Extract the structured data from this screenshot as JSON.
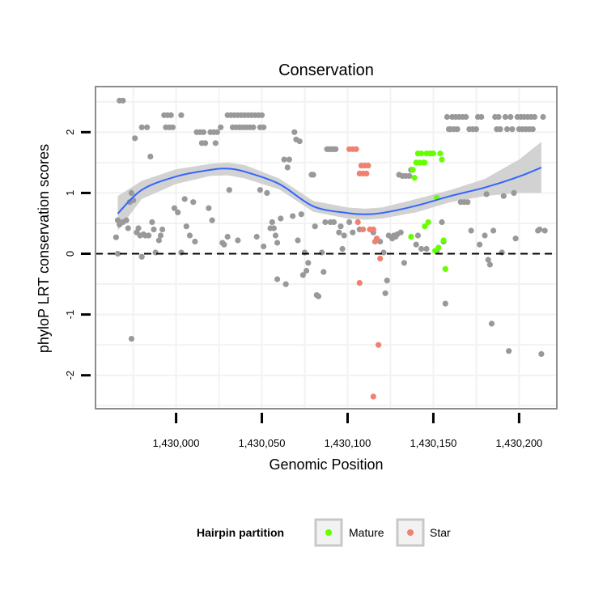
{
  "chart_data": {
    "type": "scatter",
    "title": "Conservation",
    "xlabel": "Genomic Position",
    "ylabel": "phyloP LRT conservation scores",
    "xlim": [
      1429953,
      1430222
    ],
    "ylim": [
      -2.55,
      2.75
    ],
    "x_ticks": [
      1430000,
      1430050,
      1430100,
      1430150,
      1430200
    ],
    "x_tick_labels": [
      "1,430,000",
      "1,430,050",
      "1,430,100",
      "1,430,150",
      "1,430,200"
    ],
    "y_ticks": [
      -2,
      -1,
      0,
      1,
      2
    ],
    "y_tick_labels": [
      "-2",
      "-1",
      "0",
      "1",
      "2"
    ],
    "reference_line": {
      "y": 0,
      "style": "dashed"
    },
    "legend": {
      "title": "Hairpin partition",
      "position": "bottom",
      "entries": [
        {
          "label": "Mature",
          "color": "#66ff00"
        },
        {
          "label": "Star",
          "color": "#f08070"
        }
      ]
    },
    "colors": {
      "other": "#999999",
      "Mature": "#66ff00",
      "Star": "#f08070",
      "smooth": "#3366ff",
      "band": "#d0d0d0",
      "panel_border": "#8c8c8c",
      "grid": "#f2f2f2"
    },
    "smooth": {
      "x": [
        1429966,
        1429980,
        1430000,
        1430020,
        1430030,
        1430040,
        1430060,
        1430080,
        1430100,
        1430110,
        1430120,
        1430140,
        1430160,
        1430180,
        1430200,
        1430213
      ],
      "y": [
        0.66,
        1.05,
        1.27,
        1.38,
        1.4,
        1.35,
        1.15,
        0.78,
        0.67,
        0.65,
        0.67,
        0.79,
        0.95,
        1.09,
        1.27,
        1.42
      ],
      "lower": [
        0.38,
        0.9,
        1.15,
        1.28,
        1.29,
        1.24,
        1.06,
        0.69,
        0.58,
        0.56,
        0.58,
        0.68,
        0.85,
        0.95,
        1.0,
        1.0
      ],
      "upper": [
        0.95,
        1.2,
        1.39,
        1.48,
        1.5,
        1.46,
        1.24,
        0.87,
        0.76,
        0.74,
        0.76,
        0.9,
        1.05,
        1.23,
        1.55,
        1.84
      ]
    },
    "series": [
      {
        "name": "other",
        "points": [
          [
            1429967,
            2.52
          ],
          [
            1429969,
            2.52
          ],
          [
            1429966,
            0.55
          ],
          [
            1429967,
            0.48
          ],
          [
            1429969,
            0.52
          ],
          [
            1429971,
            0.55
          ],
          [
            1429972,
            0.42
          ],
          [
            1429965,
            0.27
          ],
          [
            1429966,
            0.0
          ],
          [
            1429973,
            0.85
          ],
          [
            1429974,
            1.0
          ],
          [
            1429975,
            0.88
          ],
          [
            1429974,
            -1.4
          ],
          [
            1429976,
            1.9
          ],
          [
            1429977,
            0.35
          ],
          [
            1429978,
            0.42
          ],
          [
            1429979,
            0.3
          ],
          [
            1429980,
            2.08
          ],
          [
            1429981,
            0.32
          ],
          [
            1429982,
            0.3
          ],
          [
            1429983,
            2.08
          ],
          [
            1429984,
            0.3
          ],
          [
            1429985,
            1.6
          ],
          [
            1429986,
            0.52
          ],
          [
            1429987,
            0.4
          ],
          [
            1429980,
            -0.05
          ],
          [
            1429988,
            0.02
          ],
          [
            1429990,
            0.22
          ],
          [
            1429991,
            0.3
          ],
          [
            1429992,
            0.4
          ],
          [
            1429993,
            2.28
          ],
          [
            1429995,
            2.28
          ],
          [
            1429997,
            2.28
          ],
          [
            1429994,
            2.08
          ],
          [
            1429996,
            2.08
          ],
          [
            1429998,
            2.08
          ],
          [
            1429999,
            0.75
          ],
          [
            1430001,
            0.68
          ],
          [
            1430003,
            2.28
          ],
          [
            1430005,
            0.9
          ],
          [
            1430006,
            0.45
          ],
          [
            1430008,
            0.3
          ],
          [
            1430003,
            0.02
          ],
          [
            1430010,
            0.85
          ],
          [
            1430011,
            0.2
          ],
          [
            1430012,
            2.0
          ],
          [
            1430014,
            2.0
          ],
          [
            1430016,
            2.0
          ],
          [
            1430015,
            1.82
          ],
          [
            1430017,
            1.82
          ],
          [
            1430019,
            0.75
          ],
          [
            1430020,
            2.0
          ],
          [
            1430022,
            2.0
          ],
          [
            1430024,
            2.0
          ],
          [
            1430021,
            0.55
          ],
          [
            1430023,
            1.82
          ],
          [
            1430026,
            2.08
          ],
          [
            1430027,
            0.18
          ],
          [
            1430028,
            0.15
          ],
          [
            1430030,
            2.28
          ],
          [
            1430032,
            2.28
          ],
          [
            1430034,
            2.28
          ],
          [
            1430036,
            2.28
          ],
          [
            1430038,
            2.28
          ],
          [
            1430040,
            2.28
          ],
          [
            1430042,
            2.28
          ],
          [
            1430044,
            2.28
          ],
          [
            1430046,
            2.28
          ],
          [
            1430048,
            2.28
          ],
          [
            1430050,
            2.28
          ],
          [
            1430033,
            2.08
          ],
          [
            1430035,
            2.08
          ],
          [
            1430037,
            2.08
          ],
          [
            1430039,
            2.08
          ],
          [
            1430041,
            2.08
          ],
          [
            1430043,
            2.08
          ],
          [
            1430045,
            2.08
          ],
          [
            1430049,
            2.08
          ],
          [
            1430051,
            2.08
          ],
          [
            1430031,
            1.05
          ],
          [
            1430030,
            0.28
          ],
          [
            1430036,
            0.22
          ],
          [
            1430047,
            0.28
          ],
          [
            1430049,
            1.05
          ],
          [
            1430051,
            0.12
          ],
          [
            1430053,
            1.0
          ],
          [
            1430055,
            0.42
          ],
          [
            1430056,
            0.52
          ],
          [
            1430057,
            0.42
          ],
          [
            1430058,
            0.3
          ],
          [
            1430059,
            0.18
          ],
          [
            1430059,
            -0.42
          ],
          [
            1430061,
            0.58
          ],
          [
            1430063,
            1.55
          ],
          [
            1430065,
            1.42
          ],
          [
            1430066,
            1.55
          ],
          [
            1430064,
            -0.5
          ],
          [
            1430068,
            0.62
          ],
          [
            1430069,
            2.0
          ],
          [
            1430070,
            1.88
          ],
          [
            1430071,
            0.22
          ],
          [
            1430072,
            1.85
          ],
          [
            1430073,
            0.65
          ],
          [
            1430074,
            -0.35
          ],
          [
            1430075,
            0.02
          ],
          [
            1430076,
            -0.28
          ],
          [
            1430077,
            -0.15
          ],
          [
            1430079,
            1.3
          ],
          [
            1430080,
            1.3
          ],
          [
            1430081,
            0.45
          ],
          [
            1430082,
            -0.68
          ],
          [
            1430083,
            -0.7
          ],
          [
            1430085,
            0.02
          ],
          [
            1430086,
            -0.3
          ],
          [
            1430087,
            0.52
          ],
          [
            1430088,
            1.72
          ],
          [
            1430089,
            1.72
          ],
          [
            1430090,
            1.72
          ],
          [
            1430091,
            1.72
          ],
          [
            1430092,
            1.72
          ],
          [
            1430093,
            1.72
          ],
          [
            1430090,
            0.52
          ],
          [
            1430092,
            0.52
          ],
          [
            1430095,
            0.35
          ],
          [
            1430096,
            0.45
          ],
          [
            1430097,
            0.08
          ],
          [
            1430098,
            0.3
          ],
          [
            1430101,
            0.52
          ],
          [
            1430103,
            0.35
          ],
          [
            1430107,
            0.4
          ],
          [
            1430115,
            0.35
          ],
          [
            1430117,
            0.22
          ],
          [
            1430119,
            0.2
          ],
          [
            1430121,
            0.02
          ],
          [
            1430122,
            -0.65
          ],
          [
            1430123,
            -0.44
          ],
          [
            1430124,
            0.3
          ],
          [
            1430126,
            0.25
          ],
          [
            1430127,
            0.3
          ],
          [
            1430128,
            0.28
          ],
          [
            1430129,
            0.32
          ],
          [
            1430130,
            1.3
          ],
          [
            1430131,
            0.35
          ],
          [
            1430132,
            1.28
          ],
          [
            1430134,
            1.28
          ],
          [
            1430136,
            1.28
          ],
          [
            1430133,
            -0.15
          ],
          [
            1430137,
            1.38
          ],
          [
            1430138,
            1.38
          ],
          [
            1430140,
            0.15
          ],
          [
            1430141,
            0.3
          ],
          [
            1430143,
            0.08
          ],
          [
            1430146,
            0.08
          ],
          [
            1430152,
            0.05
          ],
          [
            1430155,
            0.52
          ],
          [
            1430156,
            0.2
          ],
          [
            1430157,
            -0.82
          ],
          [
            1430158,
            2.25
          ],
          [
            1430159,
            2.05
          ],
          [
            1430160,
            2.05
          ],
          [
            1430161,
            2.25
          ],
          [
            1430162,
            2.05
          ],
          [
            1430163,
            2.25
          ],
          [
            1430164,
            2.05
          ],
          [
            1430165,
            2.25
          ],
          [
            1430166,
            0.85
          ],
          [
            1430167,
            2.25
          ],
          [
            1430169,
            2.25
          ],
          [
            1430168,
            0.85
          ],
          [
            1430170,
            0.85
          ],
          [
            1430171,
            2.05
          ],
          [
            1430172,
            0.38
          ],
          [
            1430173,
            2.05
          ],
          [
            1430175,
            2.05
          ],
          [
            1430176,
            2.25
          ],
          [
            1430178,
            2.25
          ],
          [
            1430177,
            0.15
          ],
          [
            1430180,
            0.3
          ],
          [
            1430181,
            0.98
          ],
          [
            1430182,
            -0.1
          ],
          [
            1430183,
            -0.18
          ],
          [
            1430184,
            -1.15
          ],
          [
            1430185,
            0.38
          ],
          [
            1430186,
            2.25
          ],
          [
            1430187,
            2.05
          ],
          [
            1430188,
            2.25
          ],
          [
            1430189,
            2.05
          ],
          [
            1430190,
            0.02
          ],
          [
            1430191,
            0.95
          ],
          [
            1430192,
            2.25
          ],
          [
            1430193,
            2.05
          ],
          [
            1430195,
            2.25
          ],
          [
            1430194,
            -1.6
          ],
          [
            1430196,
            2.05
          ],
          [
            1430197,
            1.0
          ],
          [
            1430198,
            0.25
          ],
          [
            1430199,
            2.25
          ],
          [
            1430200,
            2.05
          ],
          [
            1430201,
            2.25
          ],
          [
            1430202,
            2.05
          ],
          [
            1430203,
            2.25
          ],
          [
            1430204,
            2.05
          ],
          [
            1430205,
            2.25
          ],
          [
            1430206,
            2.05
          ],
          [
            1430207,
            2.25
          ],
          [
            1430208,
            2.05
          ],
          [
            1430209,
            2.25
          ],
          [
            1430211,
            0.38
          ],
          [
            1430212,
            0.4
          ],
          [
            1430213,
            -1.65
          ],
          [
            1430214,
            2.25
          ],
          [
            1430215,
            0.38
          ]
        ]
      },
      {
        "name": "Mature",
        "points": [
          [
            1430137,
            0.28
          ],
          [
            1430138,
            1.38
          ],
          [
            1430139,
            1.25
          ],
          [
            1430140,
            1.5
          ],
          [
            1430141,
            1.65
          ],
          [
            1430142,
            1.5
          ],
          [
            1430143,
            1.65
          ],
          [
            1430144,
            1.5
          ],
          [
            1430145,
            1.5
          ],
          [
            1430145,
            0.45
          ],
          [
            1430146,
            1.65
          ],
          [
            1430147,
            0.52
          ],
          [
            1430148,
            1.65
          ],
          [
            1430149,
            1.65
          ],
          [
            1430150,
            1.65
          ],
          [
            1430151,
            0.05
          ],
          [
            1430152,
            0.92
          ],
          [
            1430153,
            0.1
          ],
          [
            1430154,
            1.65
          ],
          [
            1430155,
            1.55
          ],
          [
            1430156,
            0.22
          ],
          [
            1430157,
            -0.25
          ]
        ]
      },
      {
        "name": "Star",
        "points": [
          [
            1430101,
            1.72
          ],
          [
            1430103,
            1.72
          ],
          [
            1430105,
            1.72
          ],
          [
            1430106,
            0.52
          ],
          [
            1430107,
            1.32
          ],
          [
            1430108,
            1.45
          ],
          [
            1430109,
            1.32
          ],
          [
            1430110,
            1.45
          ],
          [
            1430111,
            1.32
          ],
          [
            1430112,
            1.45
          ],
          [
            1430109,
            0.4
          ],
          [
            1430113,
            0.4
          ],
          [
            1430115,
            0.4
          ],
          [
            1430107,
            -0.48
          ],
          [
            1430116,
            0.2
          ],
          [
            1430117,
            0.25
          ],
          [
            1430119,
            -0.08
          ],
          [
            1430118,
            -1.5
          ],
          [
            1430115,
            -2.35
          ]
        ]
      }
    ]
  }
}
